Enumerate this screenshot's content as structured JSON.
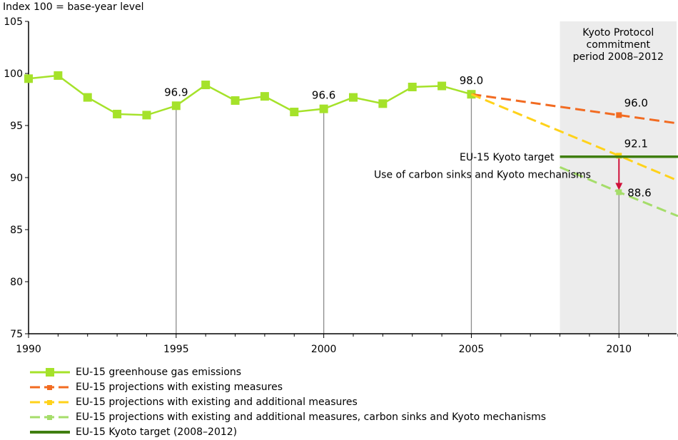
{
  "chart_data": {
    "type": "line",
    "ylabel": "Index 100 = base-year level",
    "ylim": [
      75,
      105
    ],
    "y_ticks": [
      75,
      80,
      85,
      90,
      95,
      100,
      105
    ],
    "xlim": [
      1990,
      2012
    ],
    "x_ticks": [
      1990,
      1995,
      2000,
      2005,
      2010
    ],
    "grid": false,
    "shaded_region": {
      "x": [
        2008,
        2012
      ],
      "label_lines": [
        "Kyoto Protocol",
        "commitment",
        "period 2008–2012"
      ]
    },
    "series": [
      {
        "name": "EU-15 greenhouse gas emissions",
        "color": "#a5e22a",
        "style": "solid-square-markers",
        "x": [
          1990,
          1991,
          1992,
          1993,
          1994,
          1995,
          1996,
          1997,
          1998,
          1999,
          2000,
          2001,
          2002,
          2003,
          2004,
          2005
        ],
        "values": [
          99.5,
          99.8,
          97.7,
          96.1,
          96.0,
          96.9,
          98.9,
          97.4,
          97.8,
          96.3,
          96.6,
          97.7,
          97.1,
          98.7,
          98.8,
          98.0
        ]
      },
      {
        "name": "EU-15 projections with existing measures",
        "color": "#f26b21",
        "style": "dashed",
        "x": [
          2005,
          2010,
          2012
        ],
        "values": [
          98.0,
          96.0,
          95.2
        ],
        "marker_x": 2010
      },
      {
        "name": "EU-15 projections with existing and additional measures",
        "color": "#ffd21a",
        "style": "dashed",
        "x": [
          2005,
          2010,
          2012
        ],
        "values": [
          98.0,
          92.1,
          89.7
        ],
        "marker_x": 2010
      },
      {
        "name": "EU-15 projections with existing and additional measures, carbon sinks and Kyoto mechanisms",
        "color": "#a5dd6a",
        "style": "dashed",
        "x": [
          2008,
          2010,
          2012
        ],
        "values": [
          91.0,
          88.6,
          86.3
        ],
        "marker_x": 2010
      },
      {
        "name": "EU-15 Kyoto target (2008–2012)",
        "color": "#3f7e10",
        "style": "solid-thick",
        "x": [
          2008,
          2012
        ],
        "values": [
          92.0,
          92.0
        ]
      }
    ],
    "drop_lines_x": [
      1995,
      2000,
      2005,
      2010
    ],
    "data_labels": [
      {
        "x": 1995,
        "y": 96.9,
        "text": "96.9"
      },
      {
        "x": 2000,
        "y": 96.6,
        "text": "96.6"
      },
      {
        "x": 2005,
        "y": 98.0,
        "text": "98.0"
      },
      {
        "x": 2010,
        "y": 96.0,
        "text": "96.0"
      },
      {
        "x": 2010,
        "y": 92.1,
        "text": "92.1"
      },
      {
        "x": 2010,
        "y": 88.6,
        "text": "88.6"
      }
    ],
    "annotations": [
      {
        "text": "EU-15 Kyoto target",
        "y": 92.0,
        "align": "right-of-2008"
      },
      {
        "text": "Use of carbon sinks and Kyoto mechanisms",
        "y": 90.3,
        "align": "right-of-2008"
      }
    ],
    "arrow": {
      "x": 2010,
      "from": 92.1,
      "to": 88.6,
      "color": "#d0113a"
    }
  }
}
